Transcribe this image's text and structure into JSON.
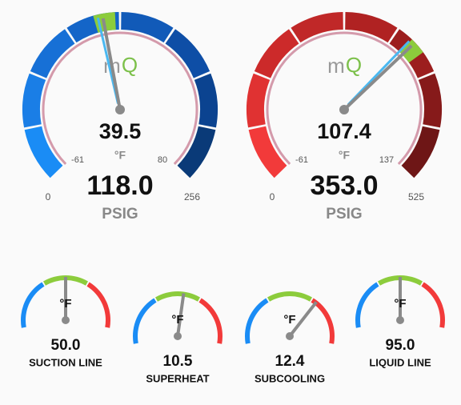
{
  "gauges": [
    {
      "logo_m": "m",
      "logo_q": "Q",
      "temperature": "39.5",
      "temp_unit": "°F",
      "temp_min": "-61",
      "temp_max": "80",
      "pressure": "118.0",
      "pressure_min": "0",
      "pressure_max": "256",
      "pressure_unit": "PSIG"
    },
    {
      "logo_m": "m",
      "logo_q": "Q",
      "temperature": "107.4",
      "temp_unit": "°F",
      "temp_min": "-61",
      "temp_max": "137",
      "pressure": "353.0",
      "pressure_min": "0",
      "pressure_max": "525",
      "pressure_unit": "PSIG"
    }
  ],
  "small_gauges": [
    {
      "unit": "°F",
      "value": "50.0",
      "label": "SUCTION LINE"
    },
    {
      "unit": "°F",
      "value": "10.5",
      "label": "SUPERHEAT"
    },
    {
      "unit": "°F",
      "value": "12.4",
      "label": "SUBCOOLING"
    },
    {
      "unit": "°F",
      "value": "95.0",
      "label": "LIQUID LINE"
    }
  ]
}
